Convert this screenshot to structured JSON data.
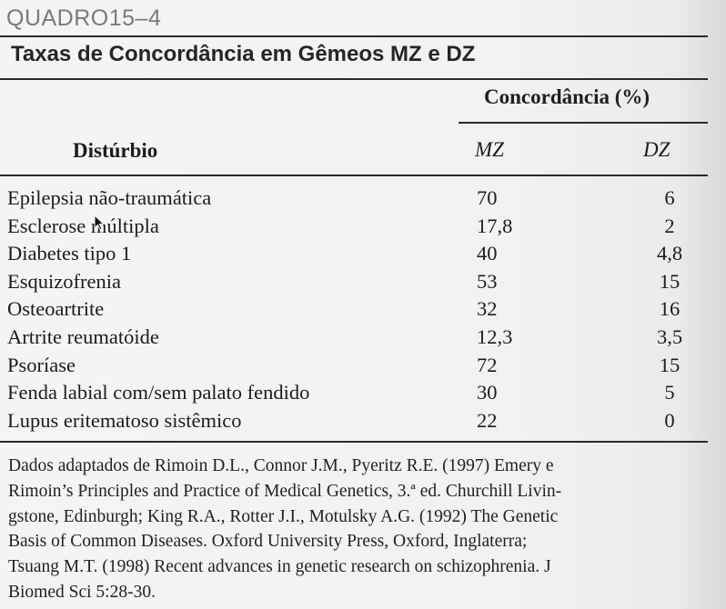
{
  "table": {
    "label": "QUADRO15–4",
    "title": "Taxas de Concordância em Gêmeos MZ e DZ",
    "group_header": "Concordância (%)",
    "columns": [
      "Distúrbio",
      "MZ",
      "DZ"
    ],
    "rows": [
      {
        "disorder": "Epilepsia não-traumática",
        "mz": "70",
        "dz": "6"
      },
      {
        "disorder": "Esclerose múltipla",
        "mz": "17,8",
        "dz": "2"
      },
      {
        "disorder": "Diabetes tipo 1",
        "mz": "40",
        "dz": "4,8"
      },
      {
        "disorder": "Esquizofrenia",
        "mz": "53",
        "dz": "15"
      },
      {
        "disorder": "Osteoartrite",
        "mz": "32",
        "dz": "16"
      },
      {
        "disorder": "Artrite reumatóide",
        "mz": "12,3",
        "dz": "3,5"
      },
      {
        "disorder": "Psoríase",
        "mz": "72",
        "dz": "15"
      },
      {
        "disorder": "Fenda labial com/sem palato fendido",
        "mz": "30",
        "dz": "5"
      },
      {
        "disorder": "Lupus eritematoso sistêmico",
        "mz": "22",
        "dz": "0"
      }
    ],
    "note_lines": [
      "Dados adaptados de Rimoin D.L., Connor J.M., Pyeritz R.E. (1997) Emery e",
      "Rimoin’s Principles and Practice of Medical Genetics, 3.ª ed. Churchill Livin-",
      "gstone, Edinburgh; King R.A., Rotter J.I., Motulsky A.G. (1992) The Genetic",
      "Basis of Common Diseases. Oxford University Press, Oxford, Inglaterra;",
      "Tsuang M.T. (1998) Recent advances in genetic research on schizophrenia. J",
      "Biomed Sci 5:28-30."
    ]
  },
  "cursor_icon": "arrow-pointer-icon"
}
